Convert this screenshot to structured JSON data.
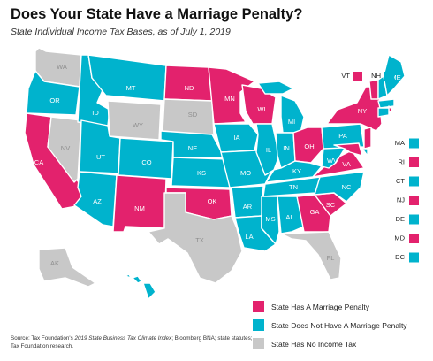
{
  "title": "Does Your State Have a Marriage Penalty?",
  "subtitle": "State Individual Income Tax Bases, as of July 1, 2019",
  "colors": {
    "penalty": "#e3226d",
    "no_penalty": "#00b3cd",
    "no_tax": "#c8c8c8",
    "label_on_color": "#ffffff",
    "label_on_gray": "#8f8f8f"
  },
  "legend": [
    {
      "key": "penalty",
      "label": "State Has A Marriage Penalty"
    },
    {
      "key": "no_penalty",
      "label": "State Does Not Have A Marriage Penalty"
    },
    {
      "key": "no_tax",
      "label": "State Has No Income Tax"
    }
  ],
  "states": [
    {
      "abbr": "WA",
      "category": "no_tax"
    },
    {
      "abbr": "OR",
      "category": "no_penalty"
    },
    {
      "abbr": "CA",
      "category": "penalty"
    },
    {
      "abbr": "NV",
      "category": "no_tax"
    },
    {
      "abbr": "ID",
      "category": "no_penalty"
    },
    {
      "abbr": "MT",
      "category": "no_penalty"
    },
    {
      "abbr": "WY",
      "category": "no_tax"
    },
    {
      "abbr": "UT",
      "category": "no_penalty"
    },
    {
      "abbr": "AZ",
      "category": "no_penalty"
    },
    {
      "abbr": "CO",
      "category": "no_penalty"
    },
    {
      "abbr": "NM",
      "category": "penalty"
    },
    {
      "abbr": "ND",
      "category": "penalty"
    },
    {
      "abbr": "SD",
      "category": "no_tax"
    },
    {
      "abbr": "NE",
      "category": "no_penalty"
    },
    {
      "abbr": "KS",
      "category": "no_penalty"
    },
    {
      "abbr": "OK",
      "category": "penalty"
    },
    {
      "abbr": "TX",
      "category": "no_tax"
    },
    {
      "abbr": "MN",
      "category": "penalty"
    },
    {
      "abbr": "IA",
      "category": "no_penalty"
    },
    {
      "abbr": "MO",
      "category": "no_penalty"
    },
    {
      "abbr": "AR",
      "category": "no_penalty"
    },
    {
      "abbr": "LA",
      "category": "no_penalty"
    },
    {
      "abbr": "WI",
      "category": "penalty"
    },
    {
      "abbr": "IL",
      "category": "no_penalty"
    },
    {
      "abbr": "MI",
      "category": "no_penalty"
    },
    {
      "abbr": "IN",
      "category": "no_penalty"
    },
    {
      "abbr": "OH",
      "category": "penalty"
    },
    {
      "abbr": "KY",
      "category": "no_penalty"
    },
    {
      "abbr": "TN",
      "category": "no_penalty"
    },
    {
      "abbr": "MS",
      "category": "no_penalty"
    },
    {
      "abbr": "AL",
      "category": "no_penalty"
    },
    {
      "abbr": "GA",
      "category": "penalty"
    },
    {
      "abbr": "FL",
      "category": "no_tax"
    },
    {
      "abbr": "SC",
      "category": "penalty"
    },
    {
      "abbr": "NC",
      "category": "no_penalty"
    },
    {
      "abbr": "VA",
      "category": "penalty"
    },
    {
      "abbr": "WV",
      "category": "no_penalty"
    },
    {
      "abbr": "PA",
      "category": "no_penalty"
    },
    {
      "abbr": "NY",
      "category": "penalty"
    },
    {
      "abbr": "VT",
      "category": "penalty"
    },
    {
      "abbr": "NH",
      "category": "no_penalty"
    },
    {
      "abbr": "ME",
      "category": "no_penalty"
    },
    {
      "abbr": "AK",
      "category": "no_tax"
    },
    {
      "abbr": "HI",
      "category": "no_penalty"
    },
    {
      "abbr": "MA",
      "category": "no_penalty"
    },
    {
      "abbr": "RI",
      "category": "penalty"
    },
    {
      "abbr": "CT",
      "category": "no_penalty"
    },
    {
      "abbr": "NJ",
      "category": "penalty"
    },
    {
      "abbr": "DE",
      "category": "no_penalty"
    },
    {
      "abbr": "MD",
      "category": "penalty"
    },
    {
      "abbr": "DC",
      "category": "no_penalty"
    }
  ],
  "source": {
    "prefix": "Source: Tax Foundation's ",
    "italic": "2019 State Business Tax Climate Index",
    "suffix": "; Bloomberg BNA; state statutes; Tax Foundation research."
  }
}
